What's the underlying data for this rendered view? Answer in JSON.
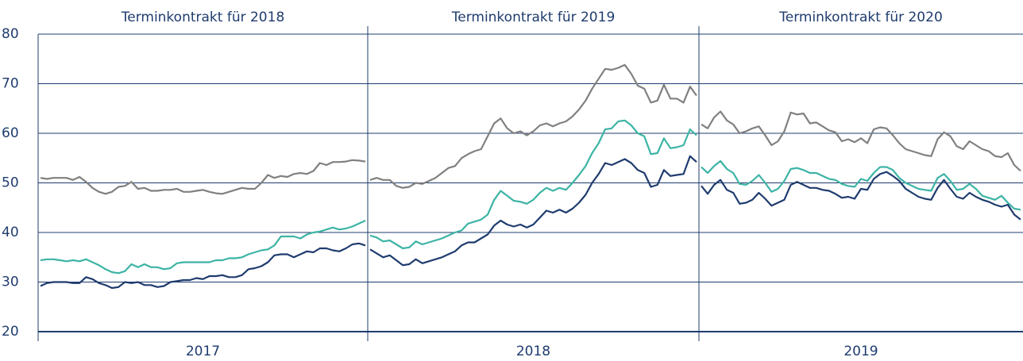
{
  "chart_data": {
    "type": "line",
    "ylim": [
      20,
      80
    ],
    "yticks": [
      20,
      30,
      40,
      50,
      60,
      70,
      80
    ],
    "grid": true,
    "panels": [
      {
        "title": "Terminkontrakt für 2018",
        "xlabel": "2017",
        "series": [
          {
            "color": "#808080",
            "values": [
              51,
              50.8,
              51,
              51,
              51,
              50.6,
              51.2,
              50.2,
              49,
              48.2,
              47.8,
              48.2,
              49.2,
              49.4,
              50.2,
              48.8,
              49,
              48.4,
              48.4,
              48.6,
              48.6,
              48.8,
              48.2,
              48.2,
              48.4,
              48.6,
              48.2,
              47.9,
              47.8,
              48.2,
              48.6,
              49,
              48.8,
              48.8,
              50,
              51.6,
              51,
              51.4,
              51.2,
              51.8,
              52,
              51.8,
              52.4,
              54,
              53.6,
              54.2,
              54.2,
              54.3,
              54.6,
              54.5,
              54.3
            ]
          },
          {
            "color": "#3cb4a5",
            "values": [
              34.4,
              34.6,
              34.6,
              34.4,
              34.2,
              34.4,
              34.2,
              34.6,
              34,
              33.4,
              32.6,
              32,
              31.8,
              32.2,
              33.6,
              33,
              33.6,
              33,
              33,
              32.6,
              32.8,
              33.8,
              34,
              34,
              34,
              34,
              34,
              34.4,
              34.4,
              34.8,
              34.8,
              35,
              35.6,
              36,
              36.4,
              36.6,
              37.4,
              39.2,
              39.2,
              39.2,
              38.8,
              39.6,
              40,
              40.2,
              40.6,
              41,
              40.6,
              40.8,
              41.2,
              41.8,
              42.4
            ]
          },
          {
            "color": "#1f3c6e",
            "values": [
              29.2,
              29.8,
              30,
              30,
              30,
              29.8,
              29.8,
              31,
              30.6,
              29.8,
              29.4,
              28.8,
              29,
              30,
              29.8,
              30,
              29.4,
              29.4,
              29,
              29.2,
              30,
              30.2,
              30.4,
              30.4,
              30.8,
              30.6,
              31.2,
              31.2,
              31.4,
              31,
              31,
              31.4,
              32.6,
              32.8,
              33.2,
              34,
              35.4,
              35.6,
              35.6,
              35,
              35.6,
              36.2,
              36,
              36.8,
              36.8,
              36.4,
              36.2,
              36.8,
              37.6,
              37.8,
              37.4
            ]
          }
        ]
      },
      {
        "title": "Terminkontrakt für 2019",
        "xlabel": "2018",
        "series": [
          {
            "color": "#808080",
            "values": [
              50.6,
              51,
              50.6,
              50.6,
              49.4,
              49,
              49.2,
              50,
              49.8,
              50.4,
              51,
              52,
              53,
              53.4,
              55,
              55.8,
              56.4,
              56.8,
              59.4,
              62,
              63,
              61,
              60,
              60.4,
              59.6,
              60.4,
              61.6,
              62,
              61.4,
              62,
              62.4,
              63.4,
              64.8,
              66.6,
              69,
              71,
              73,
              72.8,
              73.2,
              73.8,
              72,
              69.6,
              69,
              66.2,
              66.6,
              69.8,
              67,
              67,
              66.2,
              69.4,
              67.6
            ]
          },
          {
            "color": "#3cb4a5",
            "values": [
              39.4,
              39,
              38.2,
              38.4,
              37.6,
              36.8,
              37,
              38.2,
              37.6,
              38,
              38.4,
              38.8,
              39.4,
              40,
              40.4,
              41.8,
              42.2,
              42.6,
              43.6,
              46.6,
              48.4,
              47.4,
              46.4,
              46.2,
              45.8,
              46.6,
              48,
              49,
              48.4,
              49,
              48.6,
              50,
              51.6,
              53.4,
              56,
              58,
              60.8,
              61,
              62.4,
              62.6,
              61.6,
              60,
              59.4,
              55.8,
              56,
              59,
              57,
              57.2,
              57.6,
              60.8,
              59.6
            ]
          },
          {
            "color": "#1f3c6e",
            "values": [
              36.6,
              35.8,
              35,
              35.4,
              34.4,
              33.4,
              33.6,
              34.6,
              33.8,
              34.2,
              34.6,
              35,
              35.6,
              36.2,
              37.4,
              38,
              38,
              38.8,
              39.6,
              41.4,
              42.4,
              41.6,
              41.2,
              41.6,
              41,
              41.6,
              43,
              44.4,
              44,
              44.6,
              44,
              44.8,
              46,
              47.6,
              50,
              51.8,
              54,
              53.6,
              54.2,
              54.8,
              54,
              52.6,
              52,
              49.2,
              49.6,
              52.6,
              51.4,
              51.6,
              51.8,
              55.4,
              54.2
            ]
          }
        ]
      },
      {
        "title": "Terminkontrakt für 2020",
        "xlabel": "2019",
        "series": [
          {
            "color": "#808080",
            "values": [
              61.8,
              61,
              63.2,
              64.4,
              62.6,
              61.8,
              60,
              60.4,
              61,
              61.4,
              59.6,
              57.6,
              58.4,
              60.4,
              64.2,
              63.8,
              64,
              62,
              62.2,
              61.4,
              60.6,
              60.2,
              58.4,
              58.8,
              58.2,
              59,
              58,
              60.8,
              61.2,
              61,
              59.6,
              58,
              56.8,
              56.4,
              56,
              55.6,
              55.4,
              58.8,
              60.2,
              59.4,
              57.4,
              56.8,
              58.4,
              57.6,
              56.8,
              56.4,
              55.4,
              55.2,
              56,
              53.6,
              52.4
            ]
          },
          {
            "color": "#3cb4a5",
            "values": [
              53.2,
              52,
              53.4,
              54.4,
              52.8,
              52,
              49.8,
              49.6,
              50.4,
              51.6,
              50,
              48.2,
              48.8,
              50.4,
              52.8,
              53,
              52.6,
              52,
              52,
              51.4,
              50.8,
              50.6,
              49.8,
              49.4,
              49.2,
              50.8,
              50.4,
              52,
              53.2,
              53.2,
              52.6,
              51,
              50,
              49.4,
              48.8,
              48.6,
              48.4,
              51,
              51.8,
              50.4,
              48.6,
              48.8,
              49.8,
              48.8,
              47.4,
              47,
              46.6,
              47.4,
              46,
              44.8,
              44.6
            ]
          },
          {
            "color": "#1f3c6e",
            "values": [
              49.4,
              47.8,
              49.6,
              50.6,
              48.6,
              48,
              45.8,
              46,
              46.6,
              48,
              46.8,
              45.4,
              46,
              46.6,
              49.6,
              50.2,
              49.6,
              49,
              49,
              48.6,
              48.4,
              47.8,
              47,
              47.2,
              46.8,
              48.8,
              48.6,
              50.8,
              51.8,
              52.2,
              51.4,
              50.4,
              48.8,
              48,
              47.2,
              46.8,
              46.6,
              49,
              50.6,
              48.8,
              47.2,
              46.8,
              48,
              47.2,
              46.6,
              46.2,
              45.6,
              45.2,
              45.6,
              43.6,
              42.6
            ]
          }
        ]
      }
    ]
  }
}
